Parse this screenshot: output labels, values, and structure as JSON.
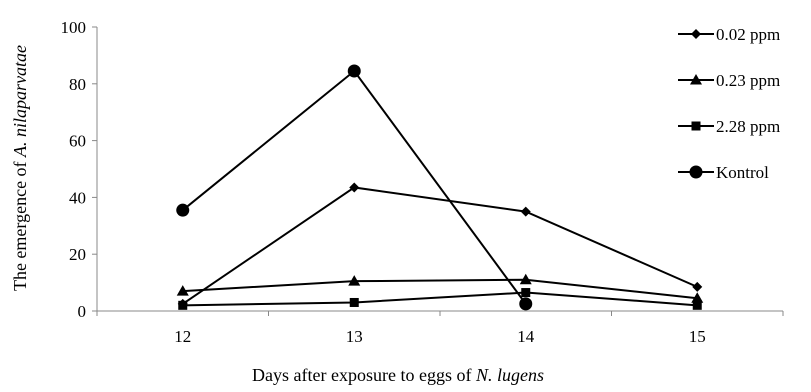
{
  "chart_data": {
    "type": "line",
    "title": "",
    "xlabel": "Days after exposure to eggs of N. lugens",
    "xlabel_parts": [
      {
        "text": "Days after exposure to eggs of ",
        "italic": false
      },
      {
        "text": "N. lugens",
        "italic": true
      }
    ],
    "ylabel": "The emergence of A. nilaparvatae",
    "ylabel_parts": [
      {
        "text": "The emergence of ",
        "italic": false
      },
      {
        "text": "A. nilaparvatae",
        "italic": true
      }
    ],
    "categories": [
      "12",
      "13",
      "14",
      "15"
    ],
    "ylim": [
      0,
      100
    ],
    "yticks": [
      "0",
      "20",
      "40",
      "60",
      "80",
      "100"
    ],
    "grid": false,
    "legend_position": "right",
    "series": [
      {
        "name": "0.02 ppm",
        "marker": "diamond",
        "values": [
          2.5,
          43.5,
          35,
          8.5
        ]
      },
      {
        "name": "0.23 ppm",
        "marker": "triangle",
        "values": [
          7,
          10.5,
          11,
          4.5
        ]
      },
      {
        "name": "2.28 ppm",
        "marker": "square",
        "values": [
          2,
          3,
          6.5,
          2
        ]
      },
      {
        "name": "Kontrol",
        "marker": "circle",
        "values": [
          35.5,
          84.5,
          2.5,
          null
        ]
      }
    ]
  }
}
